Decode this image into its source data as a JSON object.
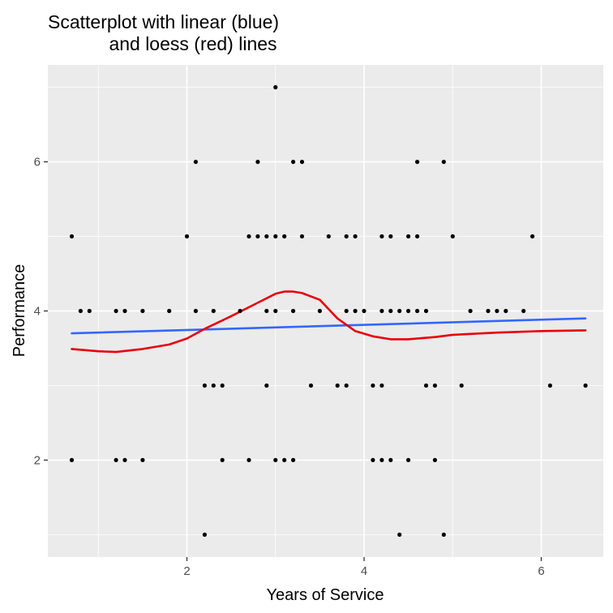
{
  "chart_data": {
    "type": "scatter",
    "title_lines": [
      "Scatterplot with linear (blue)",
      "and loess (red) lines"
    ],
    "xlabel": "Years of Service",
    "ylabel": "Performance",
    "xlim": [
      0.43,
      6.7
    ],
    "ylim": [
      0.7,
      7.3
    ],
    "x_major_ticks": [
      2,
      4,
      6
    ],
    "y_major_ticks": [
      2,
      4,
      6
    ],
    "x_minor_ticks": [
      1,
      3,
      5
    ],
    "y_minor_ticks": [
      1,
      3,
      5,
      7
    ],
    "grid": true,
    "panel_color": "#EBEBEB",
    "grid_color": "#FFFFFF",
    "point_color": "#000000",
    "points": [
      [
        0.7,
        5
      ],
      [
        0.7,
        2
      ],
      [
        0.8,
        4
      ],
      [
        0.9,
        4
      ],
      [
        1.2,
        4
      ],
      [
        1.3,
        4
      ],
      [
        1.5,
        4
      ],
      [
        1.8,
        4
      ],
      [
        1.2,
        2
      ],
      [
        1.3,
        2
      ],
      [
        1.5,
        2
      ],
      [
        2.0,
        5
      ],
      [
        2.1,
        6
      ],
      [
        2.1,
        4
      ],
      [
        2.3,
        4
      ],
      [
        2.2,
        3
      ],
      [
        2.3,
        3
      ],
      [
        2.4,
        3
      ],
      [
        2.4,
        2
      ],
      [
        2.2,
        1
      ],
      [
        2.6,
        4
      ],
      [
        2.7,
        5
      ],
      [
        2.8,
        5
      ],
      [
        2.8,
        6
      ],
      [
        2.9,
        5
      ],
      [
        3.0,
        5
      ],
      [
        3.1,
        5
      ],
      [
        3.0,
        7
      ],
      [
        2.9,
        4
      ],
      [
        3.0,
        4
      ],
      [
        2.9,
        3
      ],
      [
        2.7,
        2
      ],
      [
        3.0,
        2
      ],
      [
        3.1,
        2
      ],
      [
        3.2,
        2
      ],
      [
        3.2,
        6
      ],
      [
        3.3,
        6
      ],
      [
        3.3,
        5
      ],
      [
        3.2,
        4
      ],
      [
        3.5,
        4
      ],
      [
        3.4,
        3
      ],
      [
        3.6,
        5
      ],
      [
        3.8,
        5
      ],
      [
        3.9,
        5
      ],
      [
        3.8,
        4
      ],
      [
        3.9,
        4
      ],
      [
        4.0,
        4
      ],
      [
        3.7,
        3
      ],
      [
        3.8,
        3
      ],
      [
        4.2,
        5
      ],
      [
        4.3,
        5
      ],
      [
        4.5,
        5
      ],
      [
        4.6,
        5
      ],
      [
        4.6,
        6
      ],
      [
        4.9,
        6
      ],
      [
        4.2,
        4
      ],
      [
        4.3,
        4
      ],
      [
        4.4,
        4
      ],
      [
        4.5,
        4
      ],
      [
        4.6,
        4
      ],
      [
        4.7,
        4
      ],
      [
        4.1,
        3
      ],
      [
        4.2,
        3
      ],
      [
        4.7,
        3
      ],
      [
        4.8,
        3
      ],
      [
        4.1,
        2
      ],
      [
        4.2,
        2
      ],
      [
        4.3,
        2
      ],
      [
        4.5,
        2
      ],
      [
        4.8,
        2
      ],
      [
        4.4,
        1
      ],
      [
        4.9,
        1
      ],
      [
        5.0,
        5
      ],
      [
        5.1,
        3
      ],
      [
        5.2,
        4
      ],
      [
        5.4,
        4
      ],
      [
        5.5,
        4
      ],
      [
        5.6,
        4
      ],
      [
        5.8,
        4
      ],
      [
        5.9,
        5
      ],
      [
        6.1,
        3
      ],
      [
        6.5,
        3
      ]
    ],
    "series": [
      {
        "type": "linear",
        "color": "#3366FF",
        "x": [
          0.7,
          6.5
        ],
        "y": [
          3.7,
          3.9
        ]
      },
      {
        "type": "loess",
        "color": "#E8000B",
        "x": [
          0.7,
          1.0,
          1.2,
          1.5,
          1.8,
          2.0,
          2.2,
          2.5,
          2.8,
          3.0,
          3.1,
          3.2,
          3.3,
          3.5,
          3.7,
          3.9,
          4.1,
          4.3,
          4.5,
          4.8,
          5.0,
          5.5,
          6.0,
          6.5
        ],
        "y": [
          3.49,
          3.46,
          3.45,
          3.49,
          3.55,
          3.63,
          3.76,
          3.93,
          4.11,
          4.23,
          4.26,
          4.26,
          4.24,
          4.15,
          3.9,
          3.73,
          3.66,
          3.62,
          3.62,
          3.65,
          3.68,
          3.71,
          3.73,
          3.74
        ]
      }
    ]
  }
}
